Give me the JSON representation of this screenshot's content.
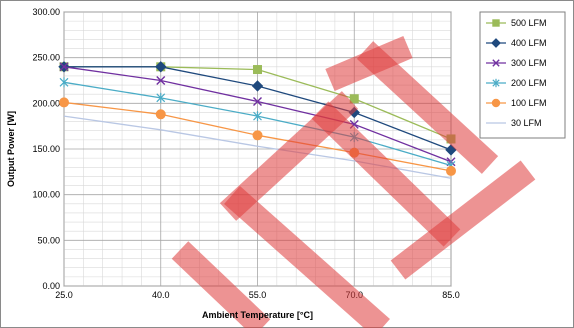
{
  "chart_data": {
    "type": "line",
    "title": "",
    "xlabel": "Ambient Temperature [°C]",
    "ylabel": "Output Power [W]",
    "x": [
      25.0,
      40.0,
      55.0,
      70.0,
      85.0
    ],
    "x_ticks": [
      "25.0",
      "40.0",
      "55.0",
      "70.0",
      "85.0"
    ],
    "y_ticks": [
      "0.00",
      "50.00",
      "100.00",
      "150.00",
      "200.00",
      "250.00",
      "300.00"
    ],
    "xlim": [
      25,
      85
    ],
    "ylim": [
      0,
      300
    ],
    "grid": true,
    "legend_position": "top-right",
    "series": [
      {
        "name": "500 LFM",
        "color": "#9bbb59",
        "marker": "square",
        "values": [
          240,
          240,
          237,
          205,
          161
        ]
      },
      {
        "name": "400 LFM",
        "color": "#1f497d",
        "marker": "diamond",
        "values": [
          240,
          240,
          219,
          190,
          149
        ]
      },
      {
        "name": "300 LFM",
        "color": "#7030a0",
        "marker": "x",
        "values": [
          240,
          225,
          202,
          177,
          136
        ]
      },
      {
        "name": "200 LFM",
        "color": "#4bacc6",
        "marker": "asterisk",
        "values": [
          223,
          206,
          186,
          163,
          132
        ]
      },
      {
        "name": "100 LFM",
        "color": "#f79646",
        "marker": "circle",
        "values": [
          201,
          188,
          165,
          146,
          126
        ]
      },
      {
        "name": "30 LFM",
        "color": "#b9c7e4",
        "marker": "none",
        "values": [
          186,
          171,
          153,
          137,
          118
        ]
      }
    ],
    "watermark_color": "#e03c3c"
  }
}
